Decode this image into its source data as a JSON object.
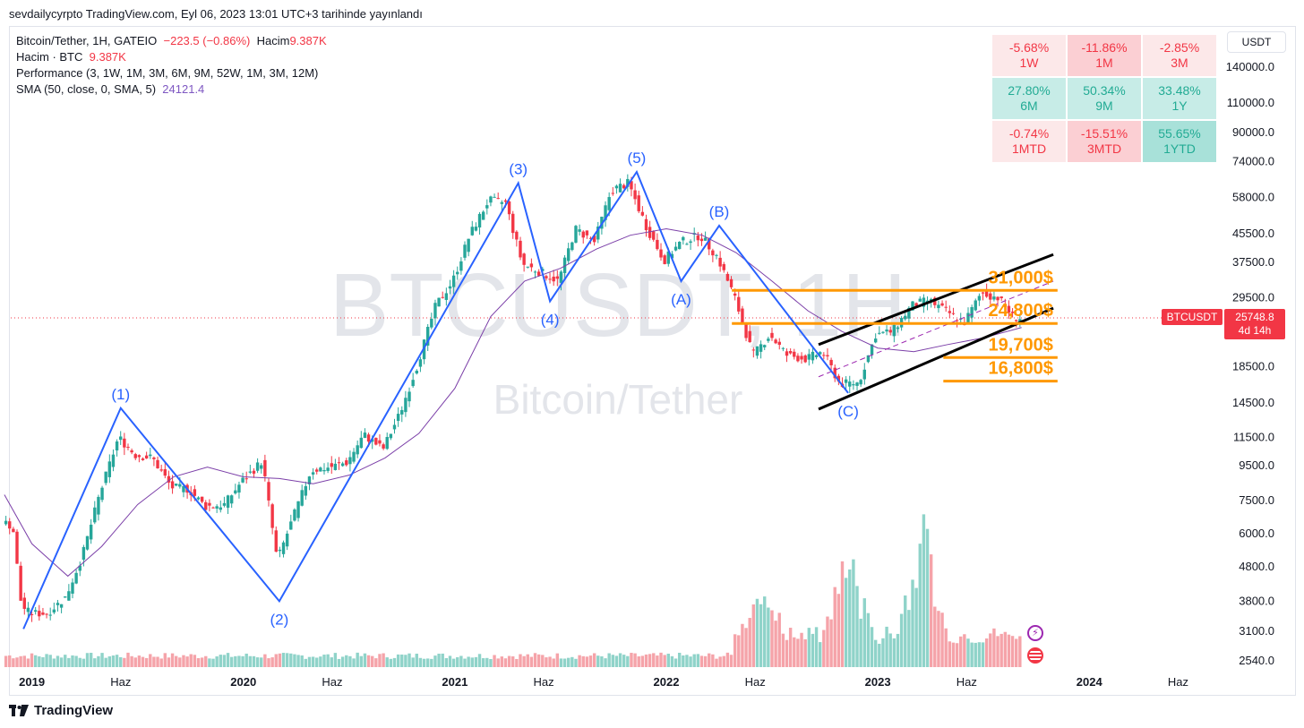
{
  "header": {
    "text": "sevdailycyrpto TradingView.com, Eyl 06, 2023 13:01 UTC+3 tarihinde yayınlandı"
  },
  "legend": {
    "line1_symbol": "Bitcoin/Tether, 1H, GATEIO",
    "line1_change": "−223.5 (−0.86%)",
    "line1_vol_label": "Hacim",
    "line1_vol_value": "9.387K",
    "line2_label": "Hacim · BTC",
    "line2_value": "9.387K",
    "line3": "Performance (3, 1W, 1M, 3M, 6M, 9M, 52W, 1M, 3M, 12M)",
    "line4_label": "SMA (50, close, 0, SMA, 5)",
    "line4_value": "24121.4"
  },
  "watermark": {
    "symbol": "BTCUSDT, 1H",
    "name": "Bitcoin/Tether"
  },
  "currency": "USDT",
  "performance": [
    {
      "value": "-5.68%",
      "label": "1W",
      "tone": "neg-l"
    },
    {
      "value": "-11.86%",
      "label": "1M",
      "tone": "neg-m"
    },
    {
      "value": "-2.85%",
      "label": "3M",
      "tone": "neg-l"
    },
    {
      "value": "27.80%",
      "label": "6M",
      "tone": "pos-l"
    },
    {
      "value": "50.34%",
      "label": "9M",
      "tone": "pos-l"
    },
    {
      "value": "33.48%",
      "label": "1Y",
      "tone": "pos-l"
    },
    {
      "value": "-0.74%",
      "label": "1MTD",
      "tone": "neg-l"
    },
    {
      "value": "-15.51%",
      "label": "3MTD",
      "tone": "neg-m"
    },
    {
      "value": "55.65%",
      "label": "1YTD",
      "tone": "pos-m"
    }
  ],
  "price_tag": {
    "symbol": "BTCUSDT",
    "price": "25748.8",
    "countdown": "4d 14h"
  },
  "footer": {
    "brand": "TradingView"
  },
  "colors": {
    "up": "#26a69a",
    "down": "#f23645",
    "wave": "#2962ff",
    "sma": "#7b3fa8",
    "levels": "#ff9800",
    "channel": "#000000"
  },
  "chart_data": {
    "type": "candlestick",
    "y_scale": "log",
    "y_ticks": [
      140000,
      110000,
      90000,
      74000,
      58000,
      45500,
      37500,
      29500,
      23000,
      18500,
      14500,
      11500,
      9500,
      7500,
      6000,
      4800,
      3800,
      3100,
      2540
    ],
    "y_tick_labels": [
      "140000.0",
      "110000.0",
      "90000.0",
      "74000.0",
      "58000.0",
      "45500.0",
      "37500.0",
      "29500.0",
      "23000.0",
      "18500.0",
      "14500.0",
      "11500.0",
      "9500.0",
      "7500.0",
      "6000.0",
      "4800.0",
      "3800.0",
      "3100.0",
      "2540.0"
    ],
    "x_ticks": [
      "2019",
      "Haz",
      "2020",
      "Haz",
      "2021",
      "Haz",
      "2022",
      "Haz",
      "2023",
      "Haz",
      "2024",
      "Haz"
    ],
    "x_tick_dates": [
      2019.0,
      2019.42,
      2020.0,
      2020.42,
      2021.0,
      2021.42,
      2022.0,
      2022.42,
      2023.0,
      2023.42,
      2024.0,
      2024.42
    ],
    "last_price": 25748.8,
    "price_path": [
      [
        2018.87,
        6500
      ],
      [
        2018.92,
        6300
      ],
      [
        2018.96,
        3700
      ],
      [
        2019.0,
        3500
      ],
      [
        2019.08,
        3500
      ],
      [
        2019.17,
        3900
      ],
      [
        2019.25,
        5200
      ],
      [
        2019.33,
        7800
      ],
      [
        2019.42,
        11500
      ],
      [
        2019.5,
        10200
      ],
      [
        2019.58,
        10000
      ],
      [
        2019.67,
        8200
      ],
      [
        2019.75,
        8100
      ],
      [
        2019.83,
        7200
      ],
      [
        2019.92,
        7300
      ],
      [
        2020.0,
        8500
      ],
      [
        2020.1,
        9800
      ],
      [
        2020.17,
        5000
      ],
      [
        2020.25,
        6800
      ],
      [
        2020.33,
        9200
      ],
      [
        2020.42,
        9400
      ],
      [
        2020.5,
        9700
      ],
      [
        2020.58,
        11700
      ],
      [
        2020.67,
        10600
      ],
      [
        2020.75,
        13500
      ],
      [
        2020.83,
        18500
      ],
      [
        2020.92,
        28000
      ],
      [
        2021.0,
        33000
      ],
      [
        2021.08,
        45000
      ],
      [
        2021.17,
        57000
      ],
      [
        2021.25,
        56000
      ],
      [
        2021.33,
        37000
      ],
      [
        2021.42,
        35000
      ],
      [
        2021.5,
        33000
      ],
      [
        2021.58,
        47000
      ],
      [
        2021.67,
        43000
      ],
      [
        2021.75,
        61000
      ],
      [
        2021.83,
        64000
      ],
      [
        2021.92,
        47000
      ],
      [
        2022.0,
        38000
      ],
      [
        2022.08,
        43000
      ],
      [
        2022.17,
        45000
      ],
      [
        2022.25,
        39000
      ],
      [
        2022.33,
        30000
      ],
      [
        2022.42,
        20000
      ],
      [
        2022.5,
        23000
      ],
      [
        2022.58,
        20000
      ],
      [
        2022.67,
        19500
      ],
      [
        2022.75,
        20500
      ],
      [
        2022.83,
        16500
      ],
      [
        2022.92,
        16600
      ],
      [
        2023.0,
        23000
      ],
      [
        2023.08,
        23500
      ],
      [
        2023.17,
        28000
      ],
      [
        2023.25,
        29000
      ],
      [
        2023.33,
        27000
      ],
      [
        2023.42,
        25000
      ],
      [
        2023.5,
        30500
      ],
      [
        2023.58,
        29500
      ],
      [
        2023.65,
        25900
      ],
      [
        2023.68,
        25748.8
      ]
    ],
    "sma": [
      [
        2018.87,
        7800
      ],
      [
        2019.0,
        5600
      ],
      [
        2019.17,
        4500
      ],
      [
        2019.33,
        5500
      ],
      [
        2019.5,
        7300
      ],
      [
        2019.67,
        8800
      ],
      [
        2019.83,
        9400
      ],
      [
        2020.0,
        8800
      ],
      [
        2020.17,
        8700
      ],
      [
        2020.33,
        8400
      ],
      [
        2020.5,
        8900
      ],
      [
        2020.67,
        10000
      ],
      [
        2020.83,
        11800
      ],
      [
        2021.0,
        16000
      ],
      [
        2021.17,
        26000
      ],
      [
        2021.33,
        33000
      ],
      [
        2021.5,
        36000
      ],
      [
        2021.67,
        41000
      ],
      [
        2021.83,
        45000
      ],
      [
        2022.0,
        47000
      ],
      [
        2022.17,
        45000
      ],
      [
        2022.33,
        40000
      ],
      [
        2022.5,
        33000
      ],
      [
        2022.67,
        27000
      ],
      [
        2022.83,
        23500
      ],
      [
        2023.0,
        21000
      ],
      [
        2023.17,
        20500
      ],
      [
        2023.33,
        21500
      ],
      [
        2023.5,
        22500
      ],
      [
        2023.68,
        24121.4
      ]
    ],
    "elliott_wave": [
      {
        "label": "(1)",
        "date": 2019.42,
        "price": 14000
      },
      {
        "label": "(2)",
        "date": 2020.17,
        "price": 3800
      },
      {
        "label": "(3)",
        "date": 2021.3,
        "price": 64000
      },
      {
        "label": "(4)",
        "date": 2021.45,
        "price": 28800
      },
      {
        "label": "(5)",
        "date": 2021.86,
        "price": 69000
      },
      {
        "label": "(A)",
        "date": 2022.07,
        "price": 33000
      },
      {
        "label": "(B)",
        "date": 2022.25,
        "price": 48000
      },
      {
        "label": "(C)",
        "date": 2022.86,
        "price": 15500
      }
    ],
    "wave_start": {
      "date": 2018.96,
      "price": 3150
    },
    "levels": [
      {
        "label": "31,000$",
        "price": 31000
      },
      {
        "label": "24,800$",
        "price": 24800
      },
      {
        "label": "19,700$",
        "price": 19700
      },
      {
        "label": "16,800$",
        "price": 16800
      }
    ],
    "volume_peaks": [
      {
        "date": 2022.45,
        "value": 0.38
      },
      {
        "date": 2022.85,
        "value": 0.65
      },
      {
        "date": 2023.2,
        "value": 0.9
      }
    ]
  }
}
